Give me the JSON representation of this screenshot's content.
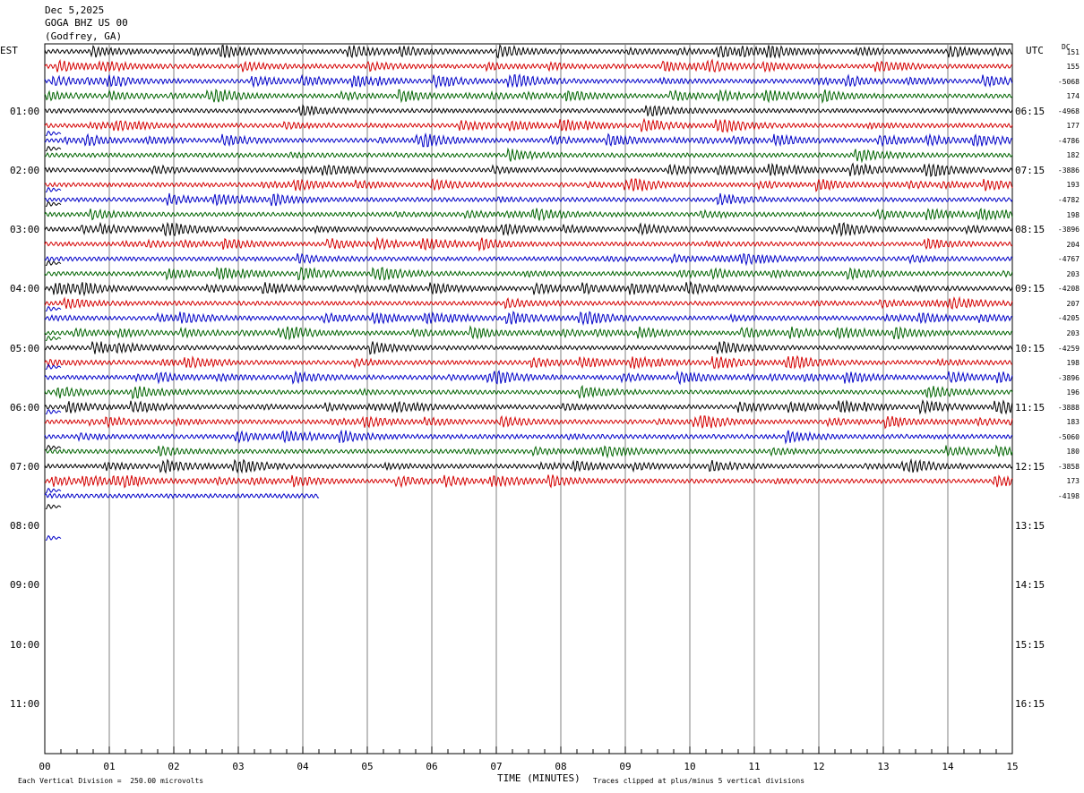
{
  "header": {
    "date": "Dec 5,2025",
    "station": "GOGA BHZ US 00",
    "location": "(Godfrey, GA)"
  },
  "left_zone_label": "EST",
  "right_zone_label": "UTC",
  "dc_label": "DC",
  "footer": {
    "scale_note": "Each Vertical Division =  250.00 microvolts",
    "axis_title": "TIME (MINUTES)",
    "clip_note": "Traces clipped at plus/minus 5 vertical divisions"
  },
  "colors": {
    "trace_cycle": [
      "#000000",
      "#d40000",
      "#0000c8",
      "#006400"
    ],
    "grid": "#808080",
    "background": "#ffffff"
  },
  "chart_data": {
    "type": "line",
    "title": "GOGA BHZ US 00 (Godfrey, GA)",
    "xlabel": "TIME (MINUTES)",
    "xlim": [
      0,
      15
    ],
    "x_ticks": [
      "00",
      "01",
      "02",
      "03",
      "04",
      "05",
      "06",
      "07",
      "08",
      "09",
      "10",
      "11",
      "12",
      "13",
      "14",
      "15"
    ],
    "rows_per_hour": 4,
    "total_rows": 48,
    "est_hour_labels": [
      "01:00",
      "02:00",
      "03:00",
      "04:00",
      "05:00",
      "06:00",
      "07:00",
      "08:00",
      "09:00",
      "10:00",
      "11:00"
    ],
    "utc_hour_labels": [
      "06:15",
      "07:15",
      "08:15",
      "09:15",
      "10:15",
      "11:15",
      "12:15",
      "13:15",
      "14:15",
      "15:15",
      "16:15"
    ],
    "dc_offsets": [
      "151",
      "155",
      "-5068",
      "174",
      "-4968",
      "177",
      "-4786",
      "182",
      "-3886",
      "193",
      "-4782",
      "198",
      "-3896",
      "204",
      "-4767",
      "203",
      "-4208",
      "207",
      "-4205",
      "203",
      "-4259",
      "198",
      "-3896",
      "196",
      "-3888",
      "183",
      "-5060",
      "180",
      "-3858",
      "173",
      "-4198"
    ],
    "full_traces": 30,
    "partial_trace_end_minute": 4.25,
    "scale_microvolts_per_division": 250.0,
    "clip_divisions": 5
  }
}
